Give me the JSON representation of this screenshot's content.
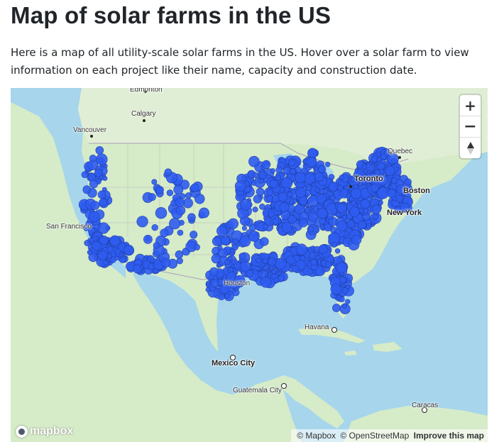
{
  "title": "Map of solar farms in the US",
  "intro": "Here is a map of all utility-scale solar farms in the US. Hover over a solar farm to view information on each project like their name, capacity and construction date.",
  "map": {
    "zoom_in": "+",
    "zoom_out": "−",
    "compass": "▲",
    "logo": "mapbox",
    "attribution": {
      "mapbox": "© Mapbox",
      "osm": "© OpenStreetMap",
      "improve": "Improve this map"
    },
    "cities": {
      "edmonton": "Edmonton",
      "calgary": "Calgary",
      "vancouver": "Vancouver",
      "quebec": "Quebec",
      "toronto": "Toronto",
      "boston": "Boston",
      "new_york": "New York",
      "san_francisco": "San Francisco",
      "houston": "Houston",
      "havana": "Havana",
      "mexico_city": "Mexico City",
      "guatemala_city": "Guatemala City",
      "caracas": "Caracas"
    },
    "colors": {
      "water": "#a6d5ec",
      "land": "#d6ebc8",
      "land_north": "#e3efd9",
      "farm_marker": "#2f5cf0"
    }
  }
}
